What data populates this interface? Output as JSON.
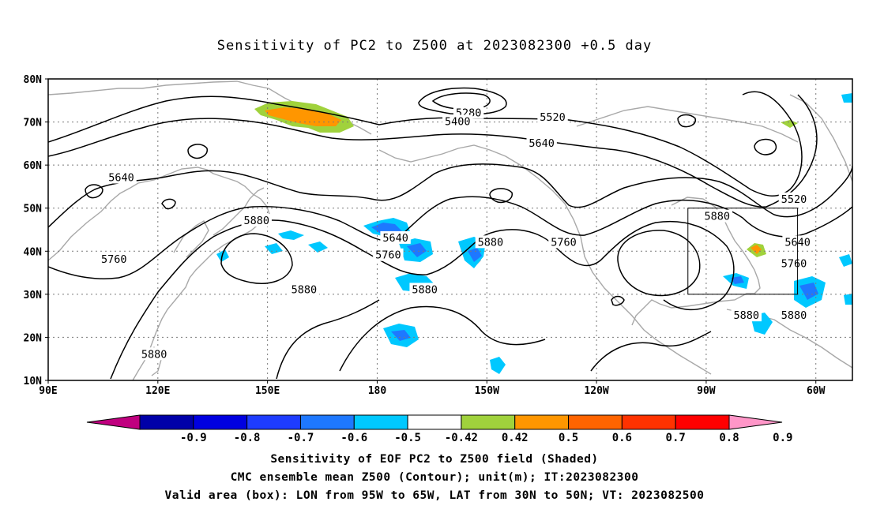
{
  "title": "Sensitivity of PC2 to Z500 at 2023082300 +0.5 day",
  "footer": {
    "line1": "Sensitivity of EOF PC2 to Z500 field (Shaded)",
    "line2": "CMC ensemble mean Z500 (Contour); unit(m); IT:2023082300",
    "line3": "Valid area (box): LON from 95W to 65W, LAT from 30N to 50N; VT: 2023082500"
  },
  "map": {
    "lat_labels": [
      "80N",
      "70N",
      "60N",
      "50N",
      "40N",
      "30N",
      "20N",
      "10N"
    ],
    "lon_labels": [
      "90E",
      "120E",
      "150E",
      "180",
      "150W",
      "120W",
      "90W",
      "60W"
    ],
    "lat_range": [
      10,
      80
    ],
    "lon_range_east": [
      90,
      310
    ],
    "valid_box": {
      "lon": [
        "95W",
        "65W"
      ],
      "lat": [
        "30N",
        "50N"
      ]
    },
    "contour_labels": [
      {
        "text": "5280",
        "lon": 205,
        "lat": 72
      },
      {
        "text": "5400",
        "lon": 202,
        "lat": 70
      },
      {
        "text": "5520",
        "lon": 228,
        "lat": 71
      },
      {
        "text": "5640",
        "lon": 225,
        "lat": 65
      },
      {
        "text": "5640",
        "lon": 110,
        "lat": 57
      },
      {
        "text": "5520",
        "lon": 294,
        "lat": 52
      },
      {
        "text": "5880",
        "lon": 273,
        "lat": 48
      },
      {
        "text": "5880",
        "lon": 147,
        "lat": 47
      },
      {
        "text": "5640",
        "lon": 185,
        "lat": 43
      },
      {
        "text": "5880",
        "lon": 211,
        "lat": 42
      },
      {
        "text": "5760",
        "lon": 231,
        "lat": 42
      },
      {
        "text": "5640",
        "lon": 295,
        "lat": 42
      },
      {
        "text": "5760",
        "lon": 183,
        "lat": 39
      },
      {
        "text": "5760",
        "lon": 108,
        "lat": 38
      },
      {
        "text": "5760",
        "lon": 294,
        "lat": 37
      },
      {
        "text": "5880",
        "lon": 160,
        "lat": 31
      },
      {
        "text": "5880",
        "lon": 193,
        "lat": 31
      },
      {
        "text": "5880",
        "lon": 281,
        "lat": 25
      },
      {
        "text": "5880",
        "lon": 294,
        "lat": 25
      },
      {
        "text": "5880",
        "lon": 119,
        "lat": 16
      }
    ]
  },
  "colorbar": {
    "labels": [
      "-0.9",
      "-0.8",
      "-0.7",
      "-0.6",
      "-0.5",
      "-0.42",
      "0.42",
      "0.5",
      "0.6",
      "0.7",
      "0.8",
      "0.9"
    ],
    "colors": [
      "#c0007f",
      "#0000a8",
      "#0000e0",
      "#1e3cff",
      "#1e78ff",
      "#00c8ff",
      "#ffffff",
      "#a0d23c",
      "#ff9600",
      "#ff6400",
      "#ff3200",
      "#ff0000",
      "#ff96c8"
    ]
  }
}
